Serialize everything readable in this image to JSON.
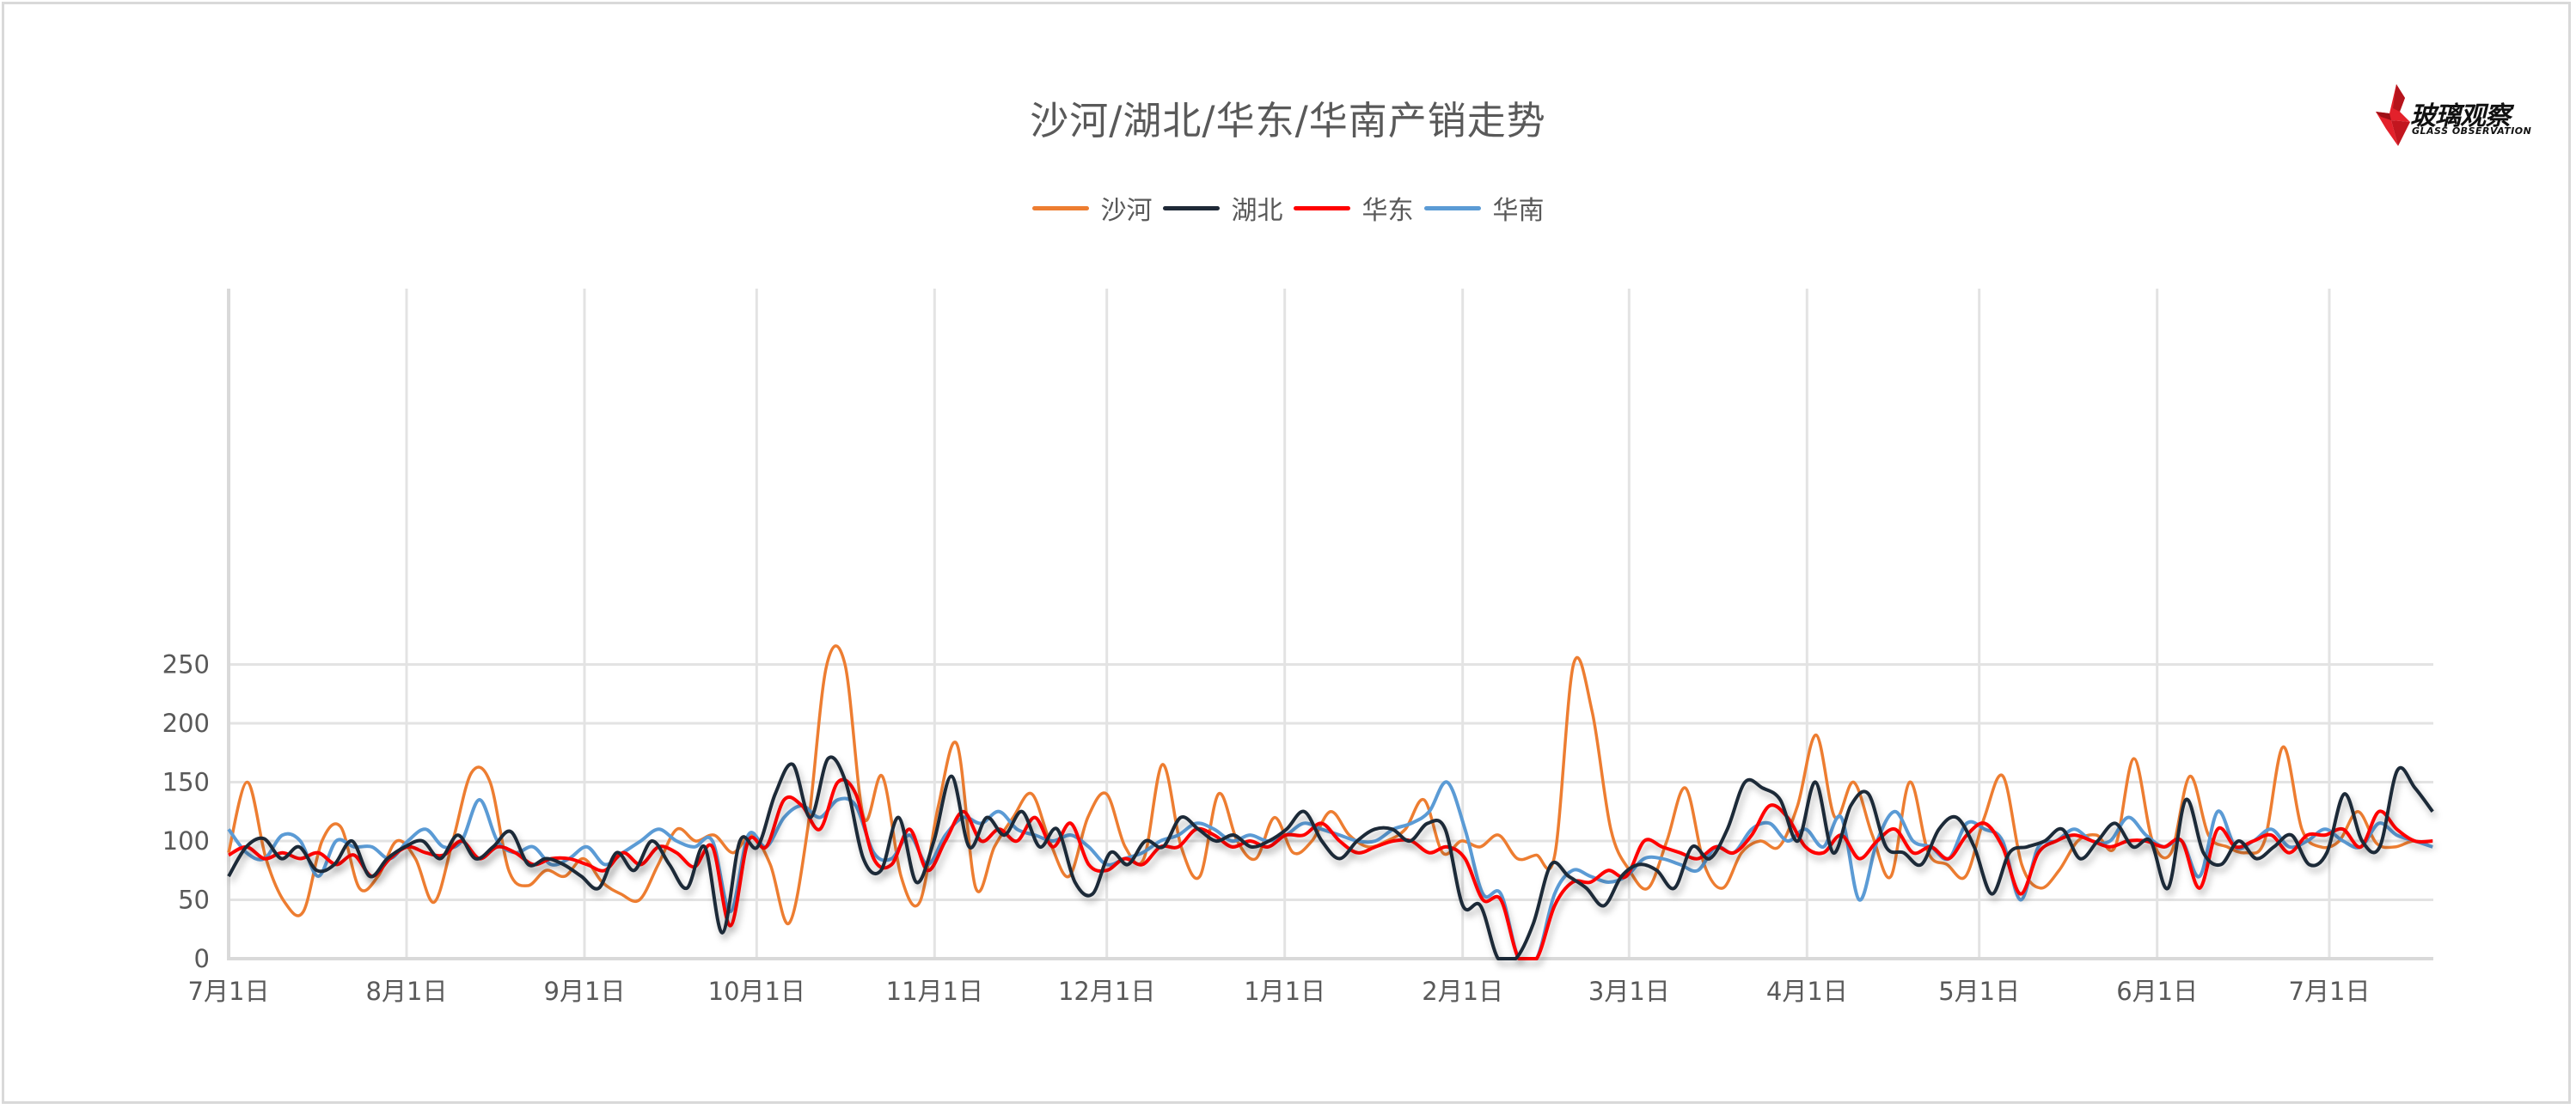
{
  "title": "沙河/湖北/华东/华南产销走势",
  "logo": {
    "cn": "玻璃观察",
    "en": "GLASS OBSERVATION",
    "icon": "red-star-icon"
  },
  "legend": [
    {
      "name": "沙河",
      "color": "#ED7D31"
    },
    {
      "name": "湖北",
      "color": "#1F2937"
    },
    {
      "name": "华东",
      "color": "#FF0000"
    },
    {
      "name": "华南",
      "color": "#5B9BD5"
    }
  ],
  "chart_data": {
    "type": "line",
    "title": "沙河/湖北/华东/华南产销走势",
    "xlabel": "",
    "ylabel": "",
    "ylim": [
      0,
      280
    ],
    "yticks": [
      0,
      50,
      100,
      150,
      200,
      250
    ],
    "xtick_labels": [
      "7月1日",
      "8月1日",
      "9月1日",
      "10月1日",
      "11月1日",
      "12月1日",
      "1月1日",
      "2月1日",
      "3月1日",
      "4月1日",
      "5月1日",
      "6月1日",
      "7月1日"
    ],
    "xtick_days": [
      0,
      31,
      62,
      92,
      123,
      153,
      184,
      215,
      244,
      275,
      305,
      336,
      366
    ],
    "grid": true,
    "legend_position": "top",
    "x_step_days": 4,
    "x_days_max": 384,
    "series": [
      {
        "name": "沙河",
        "color": "#ED7D31",
        "values": [
          90,
          150,
          85,
          48,
          40,
          100,
          112,
          60,
          70,
          100,
          85,
          48,
          100,
          158,
          150,
          75,
          62,
          75,
          70,
          85,
          65,
          55,
          50,
          80,
          110,
          100,
          105,
          90,
          105,
          80,
          30,
          110,
          248,
          250,
          120,
          155,
          70,
          48,
          130,
          182,
          60,
          95,
          120,
          140,
          98,
          70,
          120,
          140,
          95,
          85,
          165,
          95,
          70,
          140,
          100,
          85,
          120,
          90,
          100,
          125,
          105,
          95,
          100,
          110,
          135,
          90,
          100,
          95,
          105,
          85,
          88,
          88,
          250,
          210,
          110,
          75,
          60,
          100,
          145,
          80,
          60,
          90,
          100,
          95,
          130,
          190,
          120,
          150,
          105,
          70,
          150,
          90,
          80,
          70,
          120,
          155,
          80,
          60,
          75,
          100,
          105,
          95,
          170,
          100,
          90,
          155,
          105,
          95,
          90,
          100,
          180,
          110,
          95,
          100,
          125,
          98,
          95,
          100,
          95
        ]
      },
      {
        "name": "湖北",
        "color": "#1F2937",
        "values": [
          70,
          95,
          102,
          85,
          95,
          75,
          80,
          100,
          70,
          85,
          95,
          100,
          85,
          105,
          85,
          95,
          108,
          80,
          85,
          80,
          70,
          60,
          90,
          75,
          100,
          80,
          60,
          95,
          22,
          100,
          95,
          140,
          165,
          120,
          170,
          150,
          85,
          75,
          120,
          65,
          100,
          155,
          95,
          120,
          105,
          125,
          95,
          110,
          65,
          55,
          90,
          80,
          100,
          95,
          120,
          110,
          100,
          105,
          95,
          100,
          110,
          125,
          100,
          85,
          100,
          110,
          110,
          100,
          115,
          110,
          45,
          45,
          0,
          0,
          30,
          80,
          70,
          60,
          45,
          70,
          80,
          75,
          60,
          95,
          85,
          110,
          150,
          145,
          135,
          100,
          150,
          90,
          130,
          140,
          95,
          90,
          80,
          110,
          120,
          95,
          55,
          90,
          95,
          100,
          110,
          85,
          100,
          115,
          95,
          100,
          60,
          135,
          90,
          80,
          100,
          85,
          95,
          105,
          80,
          90,
          140,
          100,
          95,
          160,
          145,
          125
        ]
      },
      {
        "name": "华东",
        "color": "#FF0000",
        "values": [
          88,
          95,
          85,
          90,
          85,
          90,
          80,
          88,
          70,
          85,
          95,
          90,
          88,
          100,
          85,
          95,
          90,
          80,
          85,
          85,
          80,
          75,
          90,
          80,
          95,
          90,
          78,
          95,
          28,
          100,
          95,
          135,
          130,
          110,
          150,
          140,
          85,
          80,
          110,
          75,
          100,
          125,
          100,
          110,
          100,
          120,
          95,
          115,
          80,
          75,
          85,
          80,
          95,
          95,
          110,
          105,
          95,
          100,
          95,
          105,
          105,
          115,
          100,
          90,
          95,
          100,
          100,
          90,
          95,
          85,
          50,
          50,
          0,
          0,
          45,
          65,
          65,
          75,
          70,
          100,
          95,
          90,
          85,
          95,
          90,
          105,
          130,
          120,
          95,
          90,
          105,
          85,
          100,
          110,
          90,
          95,
          85,
          105,
          115,
          95,
          55,
          90,
          100,
          105,
          100,
          95,
          100,
          100,
          95,
          100,
          60,
          110,
          95,
          100,
          105,
          90,
          105,
          105,
          110,
          95,
          125,
          110,
          100,
          100
        ]
      },
      {
        "name": "华南",
        "color": "#5B9BD5",
        "values": [
          110,
          90,
          85,
          105,
          100,
          70,
          100,
          95,
          95,
          85,
          100,
          110,
          95,
          100,
          135,
          100,
          90,
          95,
          80,
          85,
          95,
          80,
          90,
          100,
          110,
          100,
          95,
          100,
          40,
          105,
          95,
          120,
          130,
          120,
          135,
          130,
          90,
          85,
          105,
          80,
          105,
          120,
          115,
          125,
          110,
          105,
          100,
          105,
          95,
          80,
          85,
          90,
          100,
          105,
          115,
          110,
          100,
          105,
          100,
          105,
          115,
          110,
          105,
          100,
          100,
          110,
          115,
          125,
          150,
          110,
          55,
          55,
          0,
          0,
          55,
          75,
          70,
          65,
          70,
          85,
          85,
          80,
          75,
          95,
          90,
          110,
          115,
          100,
          110,
          95,
          120,
          50,
          100,
          125,
          100,
          95,
          85,
          115,
          110,
          100,
          50,
          95,
          100,
          110,
          100,
          100,
          120,
          105,
          95,
          100,
          70,
          125,
          95,
          100,
          110,
          95,
          100,
          110,
          100,
          95,
          115,
          105,
          100,
          95
        ]
      }
    ]
  }
}
